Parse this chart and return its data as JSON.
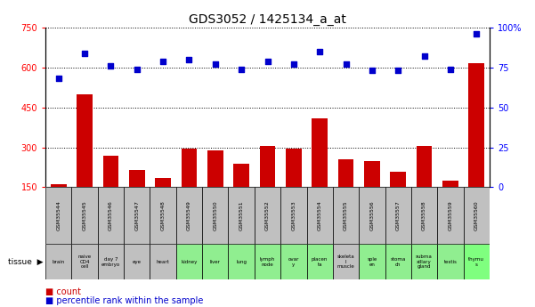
{
  "title": "GDS3052 / 1425134_a_at",
  "gsm_ids": [
    "GSM35544",
    "GSM35545",
    "GSM35546",
    "GSM35547",
    "GSM35548",
    "GSM35549",
    "GSM35550",
    "GSM35551",
    "GSM35552",
    "GSM35553",
    "GSM35554",
    "GSM35555",
    "GSM35556",
    "GSM35557",
    "GSM35558",
    "GSM35559",
    "GSM35560"
  ],
  "tissues": [
    "brain",
    "naive\nCD4\ncell",
    "day 7\nembryо",
    "eye",
    "heart",
    "kidney",
    "liver",
    "lung",
    "lymph\nnode",
    "ovar\ny",
    "placen\nta",
    "skeleta\nl\nmuscle",
    "sple\nen",
    "stoma\nch",
    "subma\nxillary\ngland",
    "testis",
    "thymu\ns"
  ],
  "tissue_colors": [
    "#c0c0c0",
    "#c0c0c0",
    "#c0c0c0",
    "#c0c0c0",
    "#c0c0c0",
    "#90ee90",
    "#90ee90",
    "#90ee90",
    "#90ee90",
    "#90ee90",
    "#90ee90",
    "#c0c0c0",
    "#90ee90",
    "#90ee90",
    "#90ee90",
    "#90ee90",
    "#7fff7f"
  ],
  "gsm_color": "#c0c0c0",
  "counts": [
    160,
    500,
    270,
    215,
    185,
    295,
    290,
    240,
    305,
    295,
    410,
    255,
    250,
    210,
    305,
    175,
    615
  ],
  "percentiles": [
    68,
    84,
    76,
    74,
    79,
    80,
    77,
    74,
    79,
    77,
    85,
    77,
    73,
    73,
    82,
    74,
    96
  ],
  "left_ylim": [
    150,
    750
  ],
  "left_yticks": [
    150,
    300,
    450,
    600,
    750
  ],
  "right_ylim": [
    0,
    100
  ],
  "right_yticks": [
    0,
    25,
    50,
    75,
    100
  ],
  "bar_color": "#cc0000",
  "dot_color": "#0000cc",
  "bar_width": 0.6,
  "bg_color": "#ffffff"
}
